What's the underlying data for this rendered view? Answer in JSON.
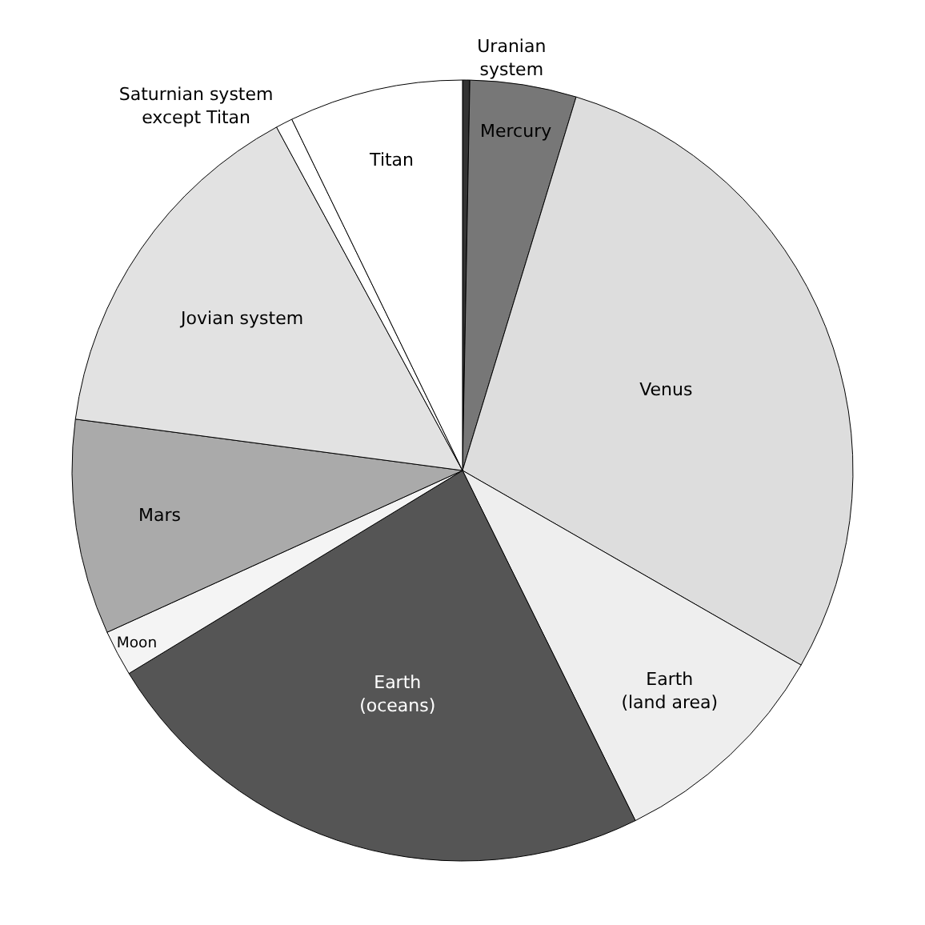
{
  "chart_data": {
    "type": "pie",
    "categories": [
      "Uranian\nsystem",
      "Mercury",
      "Venus",
      "Earth\n(land area)",
      "Earth\n(oceans)",
      "Moon",
      "Mars",
      "Jovian system",
      "Saturnian system\nexcept Titan",
      "Titan"
    ],
    "values": [
      0.3,
      4.4,
      28.6,
      9.4,
      23.6,
      1.9,
      8.9,
      15.0,
      0.7,
      7.2
    ],
    "colors": [
      "#333333",
      "#777777",
      "#dddddd",
      "#eeeeee",
      "#555555",
      "#f4f4f4",
      "#aaaaaa",
      "#e2e2e2",
      "#ffffff",
      "#ffffff"
    ],
    "legend": false
  }
}
